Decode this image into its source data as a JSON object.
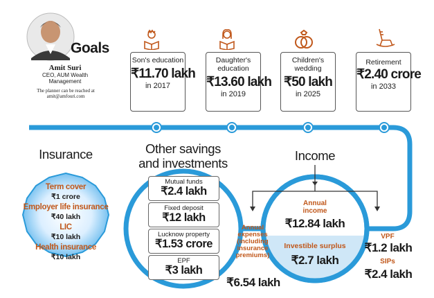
{
  "planner": {
    "name": "Amit Suri",
    "role": "CEO, AUM Wealth Management",
    "contact": "The planner can be reached at amit@amfouri.com"
  },
  "goals_title": "Goals",
  "goals": [
    {
      "label": "Son's education",
      "amount": "₹11.70 lakh",
      "year": "in 2017",
      "icon": "boy-reading-icon"
    },
    {
      "label": "Daughter's education",
      "amount": "₹13.60 lakh",
      "year": "in 2019",
      "icon": "girl-reading-icon"
    },
    {
      "label": "Children's wedding",
      "amount": "₹50 lakh",
      "year": "in 2025",
      "icon": "wedding-rings-icon"
    },
    {
      "label": "Retirement",
      "amount": "₹2.40 crore",
      "year": "in 2033",
      "icon": "rocking-chair-icon"
    }
  ],
  "insurance": {
    "title": "Insurance",
    "items": [
      {
        "label": "Term cover",
        "value": "₹1 crore"
      },
      {
        "label": "Employer life insurance",
        "value": "₹40 lakh"
      },
      {
        "label": "LIC",
        "value": "₹10 lakh"
      },
      {
        "label": "Health insurance",
        "value": "₹10 lakh"
      }
    ]
  },
  "savings": {
    "title_line1": "Other savings",
    "title_line2": "and investments",
    "items": [
      {
        "label": "Mutual funds",
        "value": "₹2.4 lakh"
      },
      {
        "label": "Fixed deposit",
        "value": "₹12 lakh"
      },
      {
        "label": "Lucknow property",
        "value": "₹1.53 crore"
      },
      {
        "label": "EPF",
        "value": "₹3 lakh"
      }
    ]
  },
  "income": {
    "title": "Income",
    "annual_income_label_1": "Annual",
    "annual_income_label_2": "income",
    "annual_income_value": "₹12.84 lakh",
    "surplus_label": "Investible surplus",
    "surplus_value": "₹2.7 lakh",
    "expenses_label_lines": [
      "Annual",
      "expenses",
      "(including",
      "insurance",
      "premiums)"
    ],
    "expenses_value": "₹6.54 lakh",
    "vpf_label": "VPF",
    "vpf_value": "₹1.2 lakh",
    "sips_label": "SIPs",
    "sips_value": "₹2.4 lakh"
  },
  "colors": {
    "flow_blue": "#2a9ad9",
    "light_blue": "#cfe7f7",
    "accent_orange": "#c0571a"
  }
}
